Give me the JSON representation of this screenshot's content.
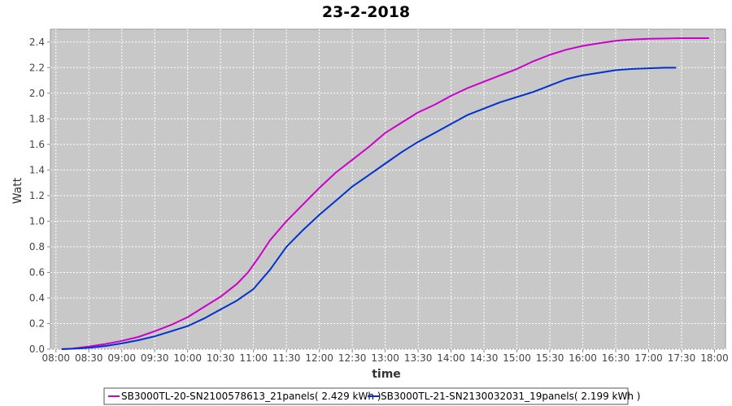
{
  "chart_data": {
    "type": "line",
    "title": "23-2-2018",
    "xlabel": "time",
    "ylabel": "Watt",
    "xlim": [
      "07:55",
      "18:10"
    ],
    "ylim": [
      0,
      2.5
    ],
    "x_ticks": [
      "08:00",
      "08:30",
      "09:00",
      "09:30",
      "10:00",
      "10:30",
      "11:00",
      "11:30",
      "12:00",
      "12:30",
      "13:00",
      "13:30",
      "14:00",
      "14:30",
      "15:00",
      "15:30",
      "16:00",
      "16:30",
      "17:00",
      "17:30",
      "18:00"
    ],
    "y_ticks": [
      "0.0",
      "0.2",
      "0.4",
      "0.6",
      "0.8",
      "1.0",
      "1.2",
      "1.4",
      "1.6",
      "1.8",
      "2.0",
      "2.2",
      "2.4"
    ],
    "grid": true,
    "legend_position": "bottom",
    "series": [
      {
        "name": "SB3000TL-20-SN2100578613_21panels( 2.429 kWh )",
        "color": "#cc00cc",
        "points": [
          [
            "08:05",
            0.0
          ],
          [
            "08:15",
            0.005
          ],
          [
            "08:30",
            0.02
          ],
          [
            "08:45",
            0.04
          ],
          [
            "09:00",
            0.065
          ],
          [
            "09:15",
            0.095
          ],
          [
            "09:30",
            0.14
          ],
          [
            "09:45",
            0.19
          ],
          [
            "10:00",
            0.25
          ],
          [
            "10:15",
            0.33
          ],
          [
            "10:30",
            0.41
          ],
          [
            "10:45",
            0.51
          ],
          [
            "10:55",
            0.6
          ],
          [
            "11:05",
            0.72
          ],
          [
            "11:15",
            0.85
          ],
          [
            "11:30",
            1.0
          ],
          [
            "11:45",
            1.13
          ],
          [
            "12:00",
            1.26
          ],
          [
            "12:15",
            1.38
          ],
          [
            "12:30",
            1.48
          ],
          [
            "12:45",
            1.58
          ],
          [
            "13:00",
            1.69
          ],
          [
            "13:15",
            1.77
          ],
          [
            "13:30",
            1.85
          ],
          [
            "13:45",
            1.91
          ],
          [
            "14:00",
            1.98
          ],
          [
            "14:15",
            2.04
          ],
          [
            "14:30",
            2.09
          ],
          [
            "14:45",
            2.14
          ],
          [
            "15:00",
            2.19
          ],
          [
            "15:15",
            2.25
          ],
          [
            "15:30",
            2.3
          ],
          [
            "15:45",
            2.34
          ],
          [
            "16:00",
            2.37
          ],
          [
            "16:15",
            2.39
          ],
          [
            "16:30",
            2.41
          ],
          [
            "16:45",
            2.42
          ],
          [
            "17:00",
            2.425
          ],
          [
            "17:30",
            2.43
          ],
          [
            "17:55",
            2.43
          ]
        ]
      },
      {
        "name": "SB3000TL-21-SN2130032031_19panels( 2.199 kWh )",
        "color": "#0033cc",
        "points": [
          [
            "08:05",
            0.0
          ],
          [
            "08:15",
            0.003
          ],
          [
            "08:30",
            0.01
          ],
          [
            "08:45",
            0.025
          ],
          [
            "09:00",
            0.045
          ],
          [
            "09:15",
            0.07
          ],
          [
            "09:30",
            0.1
          ],
          [
            "09:45",
            0.14
          ],
          [
            "10:00",
            0.18
          ],
          [
            "10:15",
            0.24
          ],
          [
            "10:30",
            0.31
          ],
          [
            "10:45",
            0.38
          ],
          [
            "11:00",
            0.47
          ],
          [
            "11:05",
            0.52
          ],
          [
            "11:15",
            0.62
          ],
          [
            "11:30",
            0.8
          ],
          [
            "11:45",
            0.93
          ],
          [
            "12:00",
            1.05
          ],
          [
            "12:15",
            1.16
          ],
          [
            "12:30",
            1.27
          ],
          [
            "12:45",
            1.36
          ],
          [
            "13:00",
            1.45
          ],
          [
            "13:15",
            1.54
          ],
          [
            "13:30",
            1.62
          ],
          [
            "13:45",
            1.69
          ],
          [
            "14:00",
            1.76
          ],
          [
            "14:15",
            1.83
          ],
          [
            "14:30",
            1.88
          ],
          [
            "14:45",
            1.93
          ],
          [
            "15:00",
            1.97
          ],
          [
            "15:15",
            2.01
          ],
          [
            "15:30",
            2.06
          ],
          [
            "15:45",
            2.11
          ],
          [
            "16:00",
            2.14
          ],
          [
            "16:15",
            2.16
          ],
          [
            "16:30",
            2.18
          ],
          [
            "16:45",
            2.19
          ],
          [
            "17:00",
            2.195
          ],
          [
            "17:15",
            2.199
          ],
          [
            "17:25",
            2.199
          ]
        ]
      }
    ]
  }
}
